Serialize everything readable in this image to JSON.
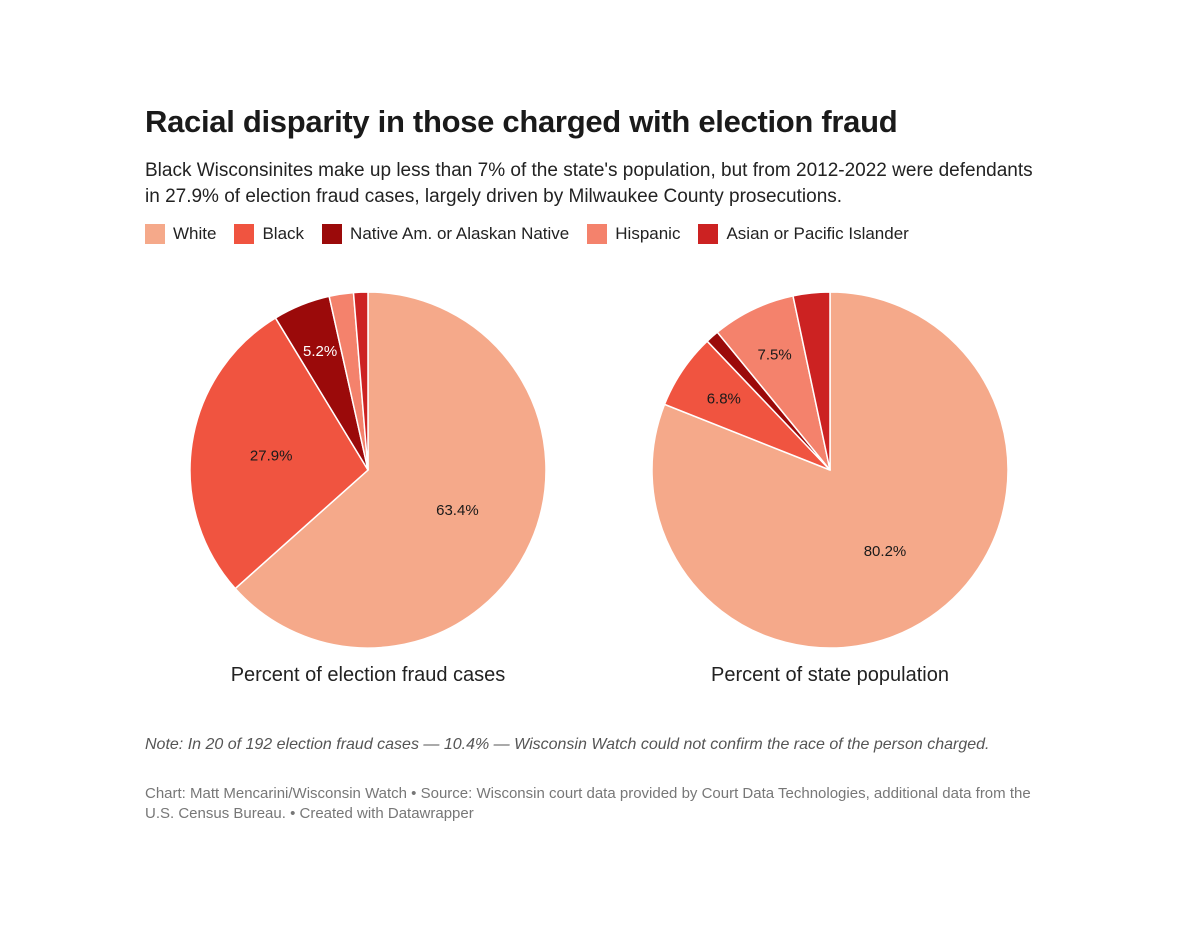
{
  "title": "Racial disparity in those charged with election fraud",
  "subtitle": "Black Wisconsinites make up less than 7% of the state's population, but from 2012-2022 were defendants in 27.9% of election fraud cases, largely driven by Milwaukee County prosecutions.",
  "legend": [
    {
      "label": "White",
      "color": "#f5a98a"
    },
    {
      "label": "Black",
      "color": "#f05440"
    },
    {
      "label": "Native Am. or Alaskan Native",
      "color": "#9b0a0a"
    },
    {
      "label": "Hispanic",
      "color": "#f4826c"
    },
    {
      "label": "Asian or Pacific Islander",
      "color": "#cc2222"
    }
  ],
  "chart_data": [
    {
      "type": "pie",
      "title": "Percent of election fraud cases",
      "slices": [
        {
          "name": "White",
          "value": 63.4,
          "label": "63.4%"
        },
        {
          "name": "Black",
          "value": 27.9,
          "label": "27.9%"
        },
        {
          "name": "Native Am. or Alaskan Native",
          "value": 5.2,
          "label": "5.2%"
        },
        {
          "name": "Hispanic",
          "value": 2.2,
          "label": ""
        },
        {
          "name": "Asian or Pacific Islander",
          "value": 1.3,
          "label": ""
        }
      ]
    },
    {
      "type": "pie",
      "title": "Percent of state population",
      "slices": [
        {
          "name": "White",
          "value": 80.2,
          "label": "80.2%"
        },
        {
          "name": "Black",
          "value": 6.8,
          "label": "6.8%"
        },
        {
          "name": "Native Am. or Alaskan Native",
          "value": 1.2,
          "label": ""
        },
        {
          "name": "Hispanic",
          "value": 7.5,
          "label": "7.5%"
        },
        {
          "name": "Asian or Pacific Islander",
          "value": 3.3,
          "label": ""
        }
      ]
    }
  ],
  "note": "Note: In 20 of 192 election fraud cases — 10.4% — Wisconsin Watch could not confirm the race of the person charged.",
  "source": "Chart: Matt Mencarini/Wisconsin Watch • Source: Wisconsin court data provided by Court Data Technologies, additional data from the U.S. Census Bureau. • Created with Datawrapper"
}
